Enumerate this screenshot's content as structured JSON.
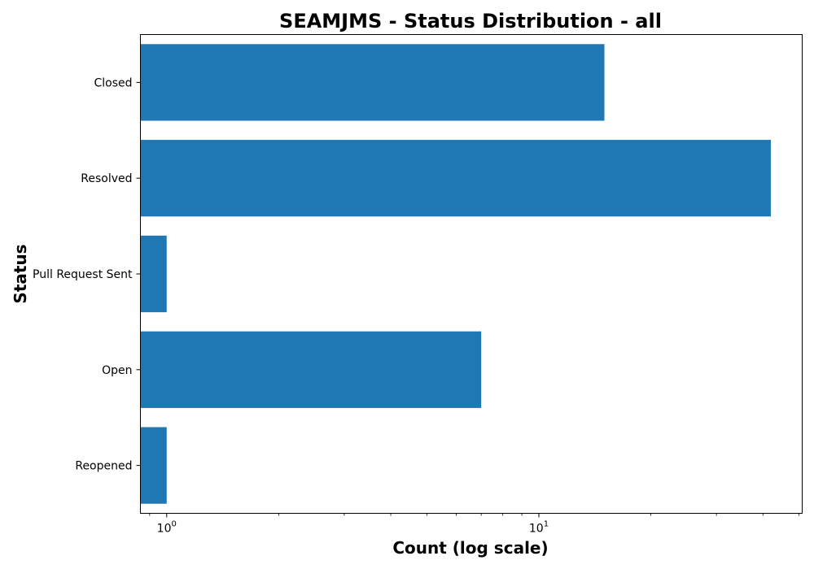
{
  "chart_data": {
    "type": "bar",
    "orientation": "horizontal",
    "title": "SEAMJMS - Status Distribution - all",
    "xlabel": "Count (log scale)",
    "ylabel": "Status",
    "x_scale": "log",
    "xlim": [
      0.85,
      51
    ],
    "categories": [
      "Closed",
      "Resolved",
      "Pull Request Sent",
      "Open",
      "Reopened"
    ],
    "values": [
      15,
      42,
      1,
      7,
      1
    ],
    "color": "#1f77b4",
    "x_major_ticks": [
      {
        "value": 1,
        "base": "10",
        "exp": "0"
      },
      {
        "value": 10,
        "base": "10",
        "exp": "1"
      }
    ],
    "grid": false,
    "legend": "none"
  }
}
